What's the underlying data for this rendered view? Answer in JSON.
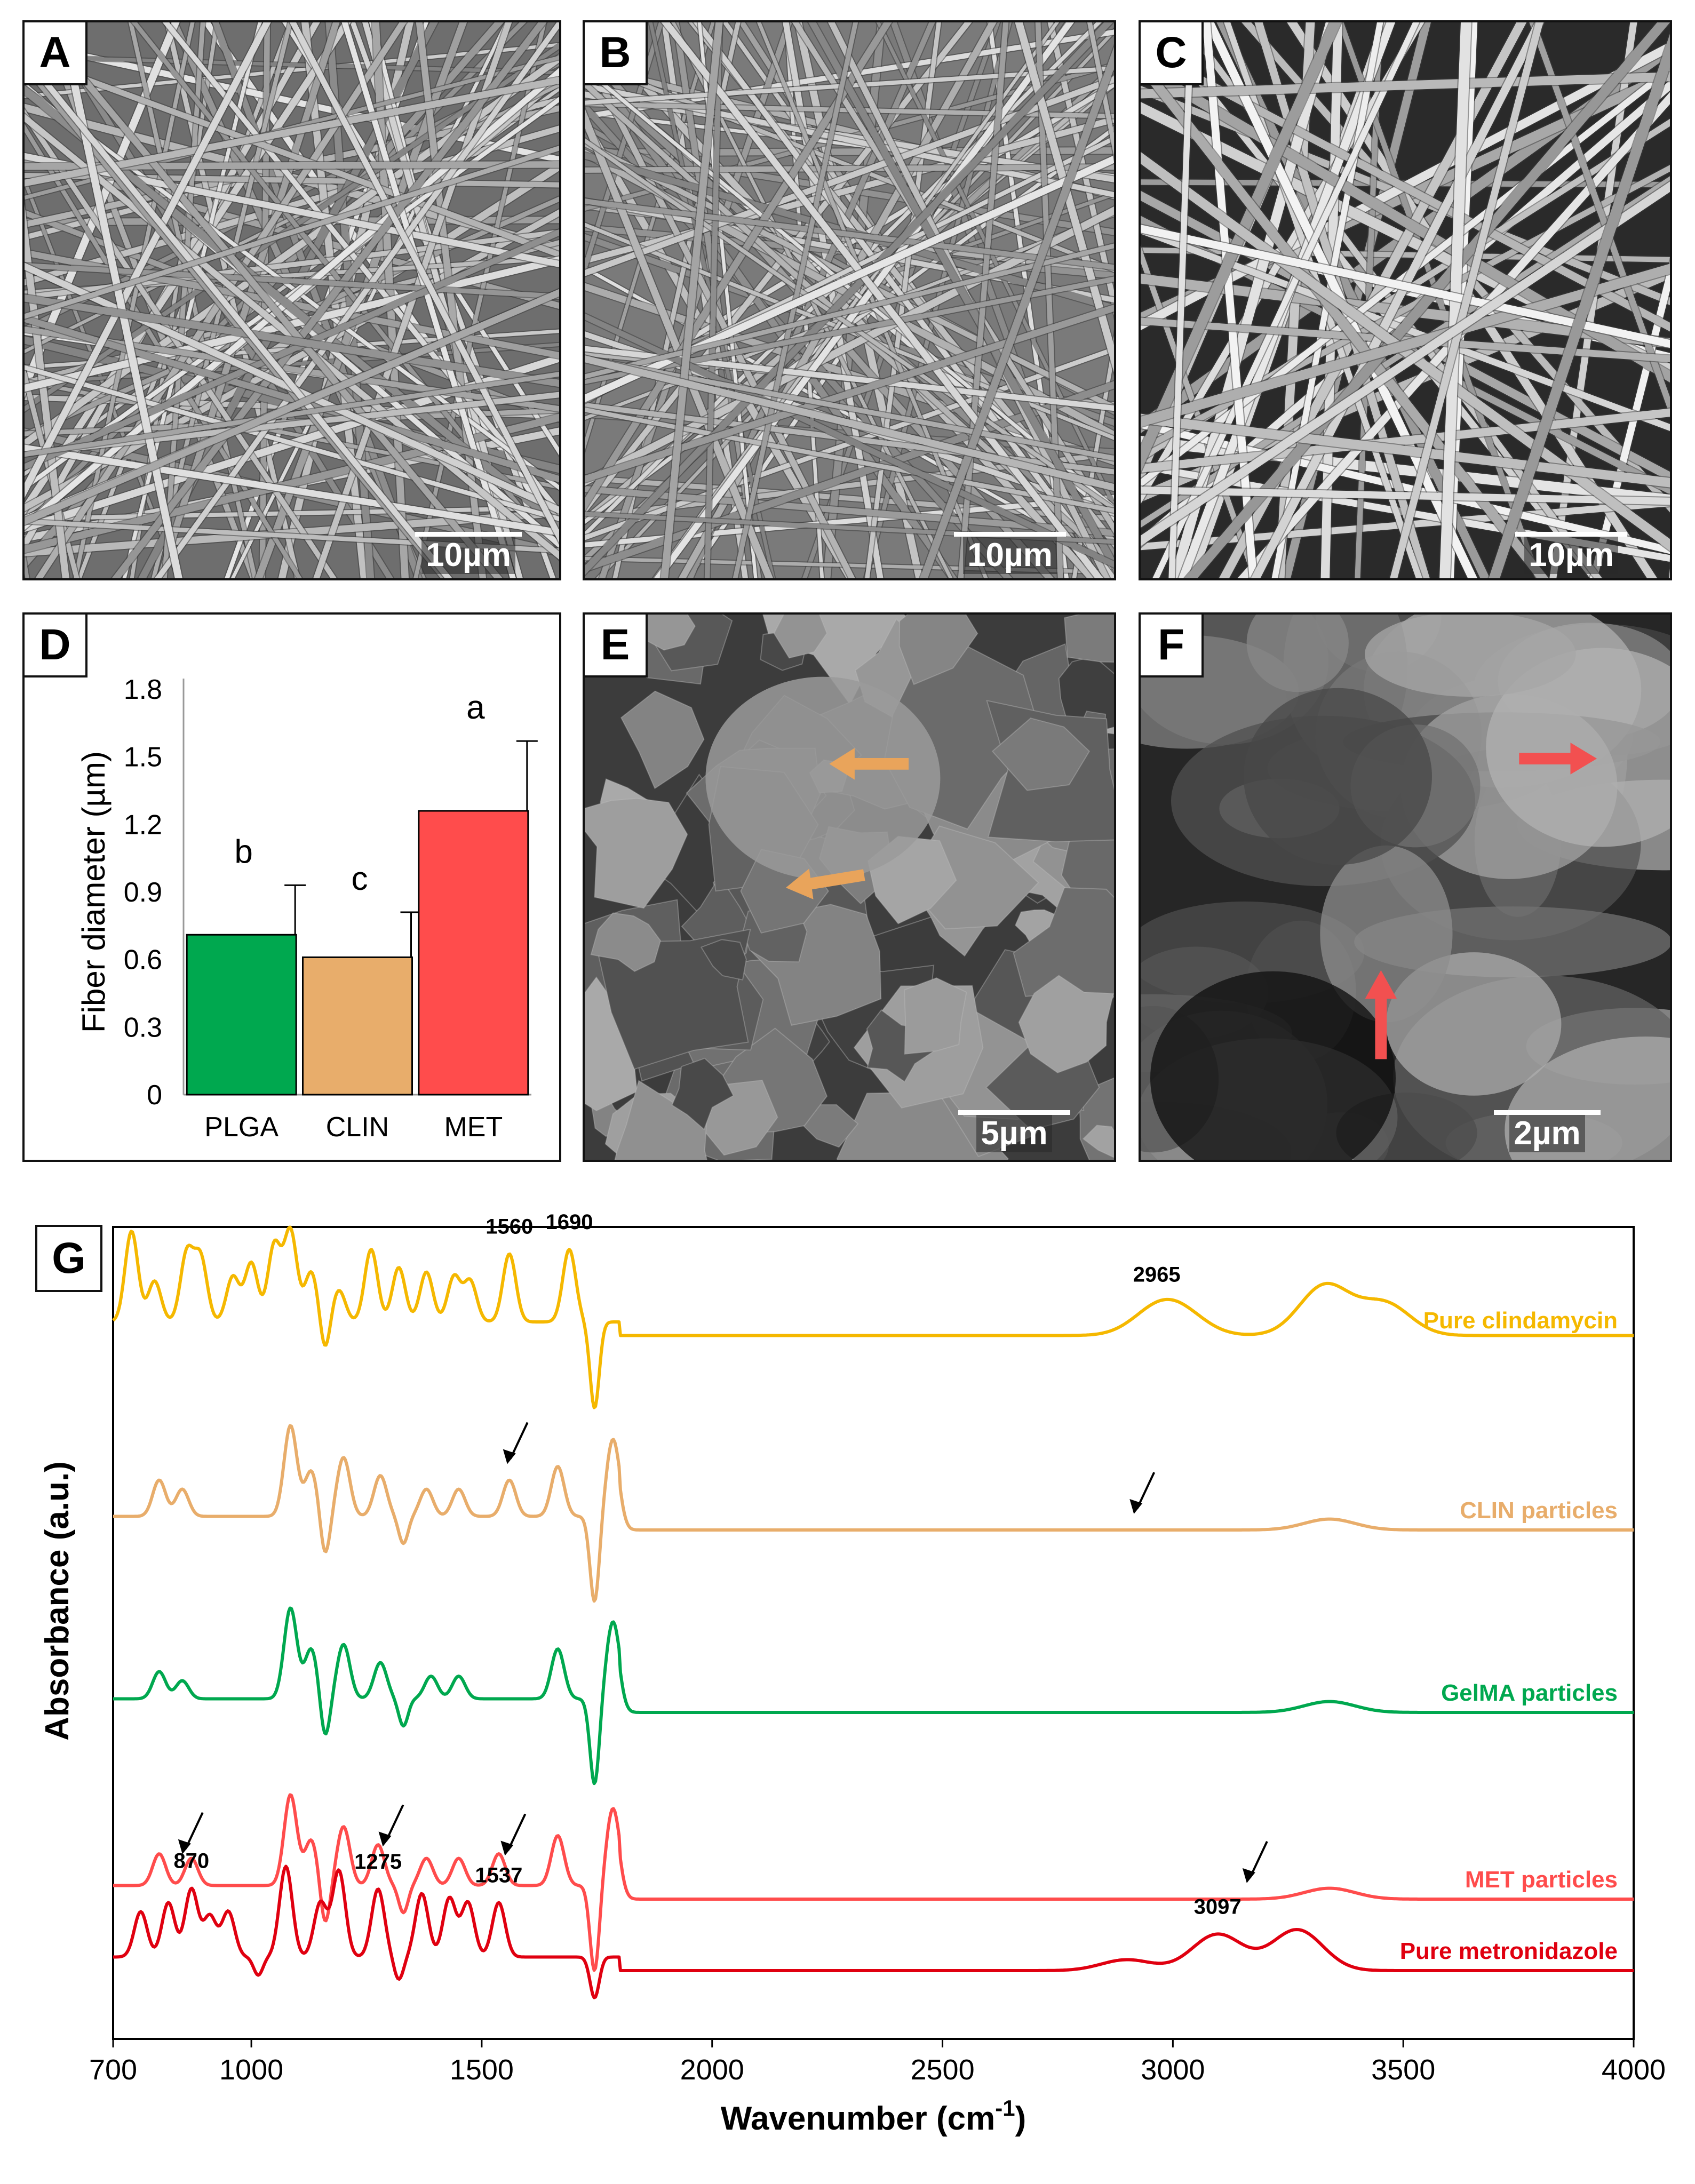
{
  "panels": {
    "a": {
      "letter": "A",
      "scale": "10µm"
    },
    "b": {
      "letter": "B",
      "scale": "10µm"
    },
    "c": {
      "letter": "C",
      "scale": "10µm"
    },
    "e": {
      "letter": "E",
      "scale": "5µm"
    },
    "f": {
      "letter": "F",
      "scale": "2µm"
    }
  },
  "colors": {
    "plga": "#00a84f",
    "clin": "#e8ad6b",
    "met": "#ff4c4c",
    "pure_clindamycin": "#f5b800",
    "gelma": "#00a84f",
    "pure_metronidazole": "#e00010",
    "arrow_e": "#e9a45b",
    "arrow_f": "#f25050"
  },
  "chart_data": [
    {
      "panel": "D",
      "type": "bar",
      "categories": [
        "PLGA",
        "CLIN",
        "MET"
      ],
      "values": [
        0.71,
        0.61,
        1.26
      ],
      "errors": [
        0.22,
        0.2,
        0.31
      ],
      "significance": [
        "b",
        "c",
        "a"
      ],
      "ylabel": "Fiber diameter (µm)",
      "ylim": [
        0,
        1.8
      ],
      "yticks": [
        "0",
        "0.3",
        "0.6",
        "0.9",
        "1.2",
        "1.5",
        "1.8"
      ],
      "grid": false
    },
    {
      "panel": "G",
      "type": "line",
      "xlabel": "Wavenumber (cm",
      "xlabel_sup": "-1",
      "xlabel_end": ")",
      "ylabel": "Absorbance (a.u.)",
      "xlim": [
        700,
        4000
      ],
      "xticks": [
        "700",
        "1000",
        "1500",
        "2000",
        "2500",
        "3000",
        "3500",
        "4000"
      ],
      "series": [
        {
          "name": "Pure clindamycin",
          "peaks": [
            [
              740,
              1.0
            ],
            [
              790,
              0.45
            ],
            [
              860,
              0.75
            ],
            [
              890,
              0.7
            ],
            [
              960,
              0.5
            ],
            [
              1000,
              0.65
            ],
            [
              1050,
              0.85
            ],
            [
              1085,
              1.0
            ],
            [
              1130,
              0.55
            ],
            [
              1190,
              0.35
            ],
            [
              1260,
              0.8
            ],
            [
              1320,
              0.6
            ],
            [
              1380,
              0.55
            ],
            [
              1440,
              0.5
            ],
            [
              1475,
              0.45
            ],
            [
              1560,
              0.75
            ],
            [
              1690,
              0.8
            ],
            [
              2965,
              0.25
            ],
            [
              3020,
              0.2
            ],
            [
              3330,
              0.55
            ],
            [
              3460,
              0.35
            ]
          ],
          "dips": [
            [
              1160,
              -0.35
            ],
            [
              1745,
              -0.95
            ]
          ],
          "baseline": 0.05
        },
        {
          "name": "CLIN particles",
          "peaks": [
            [
              800,
              0.4
            ],
            [
              850,
              0.3
            ],
            [
              1085,
              1.0
            ],
            [
              1130,
              0.5
            ],
            [
              1200,
              0.65
            ],
            [
              1280,
              0.45
            ],
            [
              1380,
              0.3
            ],
            [
              1450,
              0.3
            ],
            [
              1560,
              0.4
            ],
            [
              1665,
              0.55
            ],
            [
              1785,
              0.85
            ],
            [
              3340,
              0.12
            ]
          ],
          "dips": [
            [
              1160,
              -0.45
            ],
            [
              1330,
              -0.3
            ],
            [
              1745,
              -0.95
            ]
          ],
          "baseline": 0.0
        },
        {
          "name": "GelMA particles",
          "peaks": [
            [
              800,
              0.3
            ],
            [
              850,
              0.2
            ],
            [
              1085,
              1.0
            ],
            [
              1130,
              0.55
            ],
            [
              1200,
              0.6
            ],
            [
              1280,
              0.4
            ],
            [
              1390,
              0.25
            ],
            [
              1450,
              0.25
            ],
            [
              1665,
              0.55
            ],
            [
              1785,
              0.85
            ],
            [
              3340,
              0.12
            ]
          ],
          "dips": [
            [
              1160,
              -0.45
            ],
            [
              1330,
              -0.3
            ],
            [
              1745,
              -0.95
            ]
          ],
          "baseline": 0.0
        },
        {
          "name": "MET particles",
          "peaks": [
            [
              800,
              0.35
            ],
            [
              870,
              0.3
            ],
            [
              1085,
              1.0
            ],
            [
              1130,
              0.5
            ],
            [
              1200,
              0.65
            ],
            [
              1275,
              0.45
            ],
            [
              1380,
              0.3
            ],
            [
              1450,
              0.3
            ],
            [
              1537,
              0.35
            ],
            [
              1665,
              0.55
            ],
            [
              1785,
              0.85
            ],
            [
              3340,
              0.12
            ]
          ],
          "dips": [
            [
              1160,
              -0.45
            ],
            [
              1330,
              -0.3
            ],
            [
              1745,
              -0.95
            ]
          ],
          "baseline": 0.0
        },
        {
          "name": "Pure metronidazole",
          "peaks": [
            [
              760,
              0.5
            ],
            [
              820,
              0.6
            ],
            [
              870,
              0.75
            ],
            [
              910,
              0.45
            ],
            [
              950,
              0.5
            ],
            [
              1075,
              1.0
            ],
            [
              1150,
              0.6
            ],
            [
              1190,
              0.95
            ],
            [
              1275,
              0.75
            ],
            [
              1370,
              0.7
            ],
            [
              1430,
              0.65
            ],
            [
              1470,
              0.6
            ],
            [
              1537,
              0.6
            ],
            [
              2900,
              0.12
            ],
            [
              3097,
              0.4
            ],
            [
              3270,
              0.45
            ]
          ],
          "dips": [
            [
              1015,
              -0.2
            ],
            [
              1320,
              -0.25
            ],
            [
              1745,
              -0.45
            ]
          ],
          "baseline": 0.0
        }
      ],
      "peak_labels": [
        {
          "text": "1560",
          "series": 0,
          "x": 1560
        },
        {
          "text": "1690",
          "series": 0,
          "x": 1690
        },
        {
          "text": "2965",
          "series": 0,
          "x": 2965
        },
        {
          "text": "870",
          "series": 4,
          "x": 870
        },
        {
          "text": "1275",
          "series": 4,
          "x": 1275
        },
        {
          "text": "1537",
          "series": 4,
          "x": 1537
        },
        {
          "text": "3097",
          "series": 4,
          "x": 3097
        }
      ],
      "annotation_arrows": [
        {
          "series": 1,
          "x": 1560
        },
        {
          "series": 1,
          "x": 2920
        },
        {
          "series": 3,
          "x": 855
        },
        {
          "series": 3,
          "x": 1290
        },
        {
          "series": 3,
          "x": 1555
        },
        {
          "series": 3,
          "x": 3165
        }
      ]
    }
  ],
  "panel_d_letter": "D",
  "panel_g_letter": "G"
}
